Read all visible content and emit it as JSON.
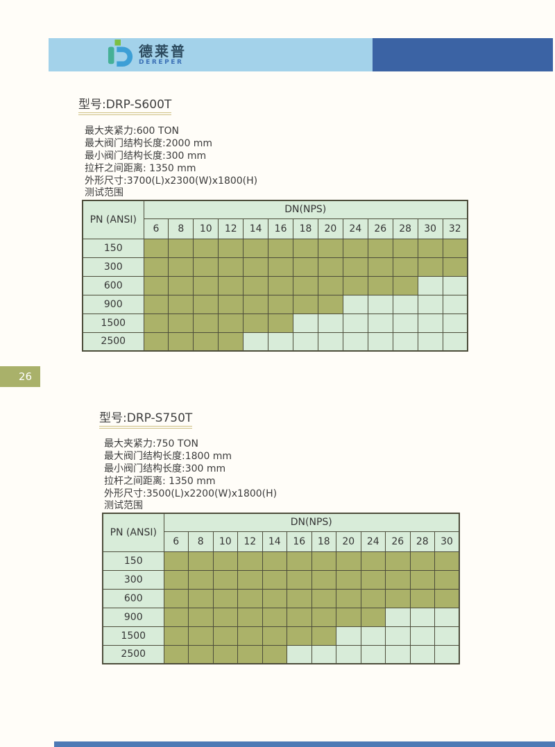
{
  "page_number": "26",
  "header": {
    "logo_cn": "德莱普",
    "logo_en": "DEREPER"
  },
  "sections": [
    {
      "title": "型号:DRP-S600T",
      "specs": [
        "最大夹紧力:600 TON",
        "最大阀门结构长度:2000 mm",
        "最小阀门结构长度:300 mm",
        "拉杆之间距离: 1350 mm",
        "外形尺寸:3700(L)x2300(W)x1800(H)"
      ],
      "table_caption": "测试范围",
      "table": {
        "corner_label": "PN (ANSI)",
        "group_label": "DN(NPS)",
        "dn_columns": [
          "6",
          "8",
          "10",
          "12",
          "14",
          "16",
          "18",
          "20",
          "24",
          "26",
          "28",
          "30",
          "32"
        ],
        "rows": [
          {
            "pn": "150",
            "covered_count": 13
          },
          {
            "pn": "300",
            "covered_count": 13
          },
          {
            "pn": "600",
            "covered_count": 11
          },
          {
            "pn": "900",
            "covered_count": 8
          },
          {
            "pn": "1500",
            "covered_count": 6
          },
          {
            "pn": "2500",
            "covered_count": 4
          }
        ]
      }
    },
    {
      "title": "型号:DRP-S750T",
      "specs": [
        "最大夹紧力:750 TON",
        "最大阀门结构长度:1800 mm",
        "最小阀门结构长度:300 mm",
        "拉杆之间距离: 1350 mm",
        "外形尺寸:3500(L)x2200(W)x1800(H)"
      ],
      "table_caption": "测试范围",
      "table": {
        "corner_label": "PN (ANSI)",
        "group_label": "DN(NPS)",
        "dn_columns": [
          "6",
          "8",
          "10",
          "12",
          "14",
          "16",
          "18",
          "20",
          "24",
          "26",
          "28",
          "30"
        ],
        "rows": [
          {
            "pn": "150",
            "covered_count": 12
          },
          {
            "pn": "300",
            "covered_count": 12
          },
          {
            "pn": "600",
            "covered_count": 12
          },
          {
            "pn": "900",
            "covered_count": 9
          },
          {
            "pn": "1500",
            "covered_count": 7
          },
          {
            "pn": "2500",
            "covered_count": 5
          }
        ]
      }
    }
  ],
  "colors": {
    "header_light_blue": "#a3d2ea",
    "header_dark_blue": "#3b63a4",
    "table_cell_green": "#d8ecd9",
    "table_covered_olive": "#abb269",
    "table_border": "#4c4c3a",
    "page_tab_olive": "#a9b16a",
    "title_underline_khaki": "#cfc083",
    "footer_blue": "#4d7ab5"
  }
}
